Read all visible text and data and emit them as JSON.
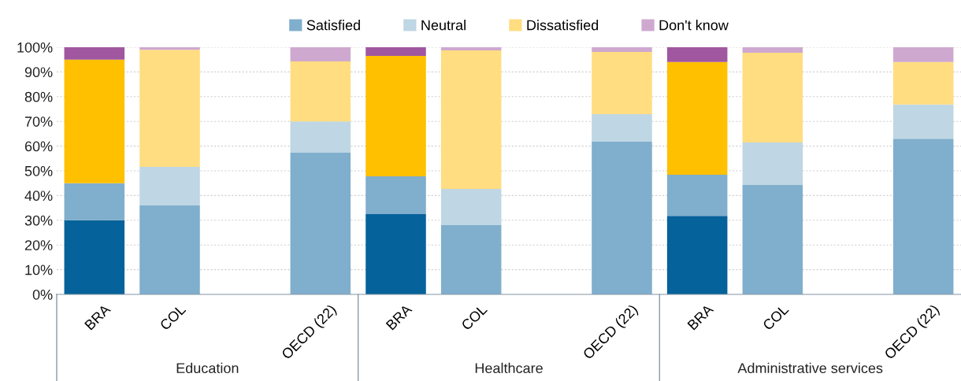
{
  "chart_data": {
    "type": "bar",
    "stacked": true,
    "categories": [
      "BRA",
      "COL",
      null,
      "OECD (22)",
      "BRA",
      "COL",
      null,
      "OECD (22)",
      "BRA",
      "COL",
      null,
      "OECD (22)"
    ],
    "series": [
      {
        "name": "Satisfied",
        "color": "#80aecd",
        "colors": [
          "#06629a",
          "#80aecd",
          "#80aecd",
          "#80aecd",
          "#06629a",
          "#80aecd",
          "#80aecd",
          "#80aecd",
          "#06629a",
          "#80aecd",
          "#80aecd",
          "#80aecd"
        ],
        "values": [
          30,
          36,
          null,
          57.3,
          32.5,
          28,
          null,
          61.8,
          31.8,
          44.3,
          null,
          63
        ]
      },
      {
        "name": "Neutral",
        "color": "#bfd6e4",
        "colors": [
          "#80aecd",
          "#bfd6e4",
          "#bfd6e4",
          "#bfd6e4",
          "#80aecd",
          "#bfd6e4",
          "#bfd6e4",
          "#bfd6e4",
          "#80aecd",
          "#bfd6e4",
          "#bfd6e4",
          "#bfd6e4"
        ],
        "values": [
          15,
          15.6,
          null,
          12.7,
          15.3,
          14.7,
          null,
          11.1,
          16.6,
          17.2,
          null,
          13.8
        ]
      },
      {
        "name": "Dissatisfied",
        "color": "#ffdd80",
        "colors": [
          "#ffc000",
          "#ffdd80",
          "#ffdd80",
          "#ffdd80",
          "#ffc000",
          "#ffdd80",
          "#ffdd80",
          "#ffdd80",
          "#ffc000",
          "#ffdd80",
          "#ffdd80",
          "#ffdd80"
        ],
        "values": [
          50,
          47.4,
          null,
          24.3,
          48.7,
          56,
          null,
          25.2,
          45.6,
          36.3,
          null,
          17.2
        ]
      },
      {
        "name": "Don't know",
        "color": "#cfa8d0",
        "colors": [
          "#a057a0",
          "#cfa8d0",
          "#cfa8d0",
          "#cfa8d0",
          "#a057a0",
          "#cfa8d0",
          "#cfa8d0",
          "#cfa8d0",
          "#a057a0",
          "#cfa8d0",
          "#cfa8d0",
          "#cfa8d0"
        ],
        "values": [
          5,
          1,
          null,
          5.7,
          3.5,
          1.3,
          null,
          1.9,
          6,
          2.2,
          null,
          6
        ]
      }
    ],
    "annotations": [
      "Education",
      "Healthcare",
      "Administrative services"
    ],
    "ylim": [
      0,
      100
    ],
    "yticks": [
      {
        "value": 0,
        "label": "0%"
      },
      {
        "value": 10,
        "label": "10%"
      },
      {
        "value": 20,
        "label": "20%"
      },
      {
        "value": 30,
        "label": "30%"
      },
      {
        "value": 40,
        "label": "40%"
      },
      {
        "value": 50,
        "label": "50%"
      },
      {
        "value": 60,
        "label": "60%"
      },
      {
        "value": 70,
        "label": "70%"
      },
      {
        "value": 80,
        "label": "80%"
      },
      {
        "value": 90,
        "label": "90%"
      },
      {
        "value": 100,
        "label": "100%"
      }
    ],
    "grid": "y",
    "legend": "top"
  }
}
